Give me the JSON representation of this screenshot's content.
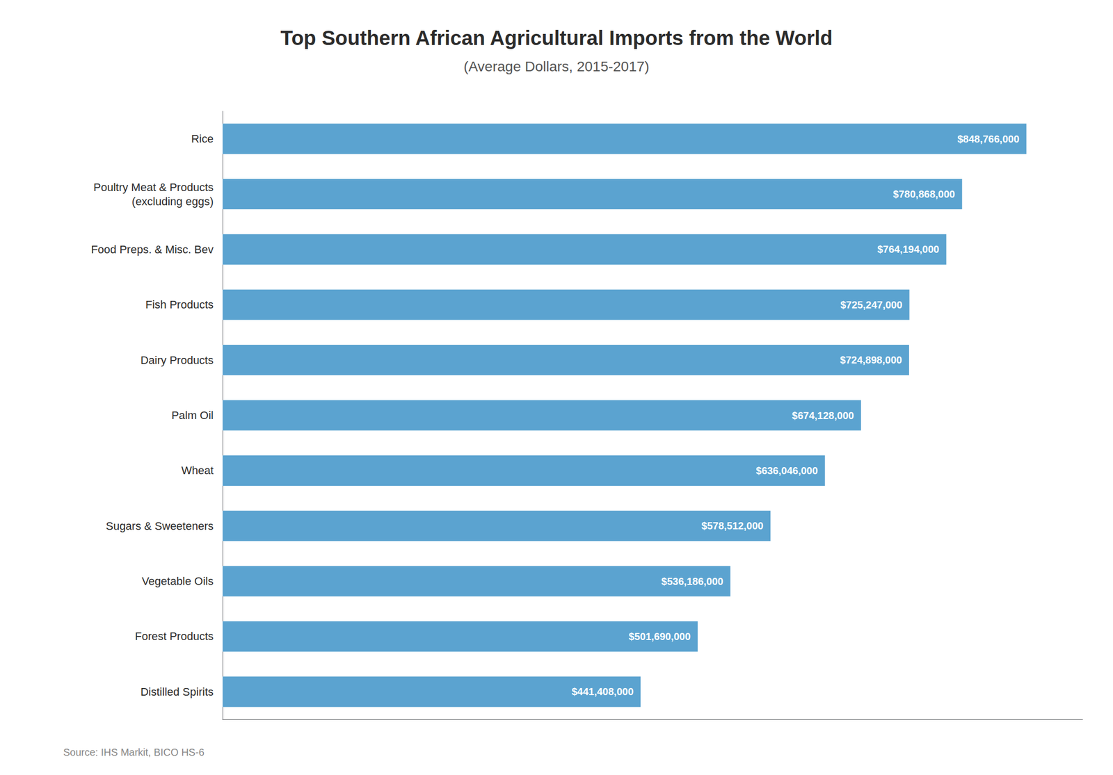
{
  "chart_data": {
    "type": "bar",
    "orientation": "horizontal",
    "title": "Top Southern African Agricultural Imports from the World",
    "subtitle": "(Average Dollars, 2015-2017)",
    "source": "Source: IHS Markit, BICO HS-6",
    "categories": [
      "Rice",
      "Poultry Meat & Products\n(excluding eggs)",
      "Food Preps. & Misc. Bev",
      "Fish Products",
      "Dairy Products",
      "Palm Oil",
      "Wheat",
      "Sugars & Sweeteners",
      "Vegetable Oils",
      "Forest Products",
      "Distilled Spirits"
    ],
    "values": [
      848766000,
      780868000,
      764194000,
      725247000,
      724898000,
      674128000,
      636046000,
      578512000,
      536186000,
      501690000,
      441408000
    ],
    "value_labels": [
      "$848,766,000",
      "$780,868,000",
      "$764,194,000",
      "$725,247,000",
      "$724,898,000",
      "$674,128,000",
      "$636,046,000",
      "$578,512,000",
      "$536,186,000",
      "$501,690,000",
      "$441,408,000"
    ],
    "color": "#5ba3d0",
    "xlim": [
      0,
      908179620
    ],
    "data_labels": true,
    "tick_labels": "y",
    "grid": false
  }
}
